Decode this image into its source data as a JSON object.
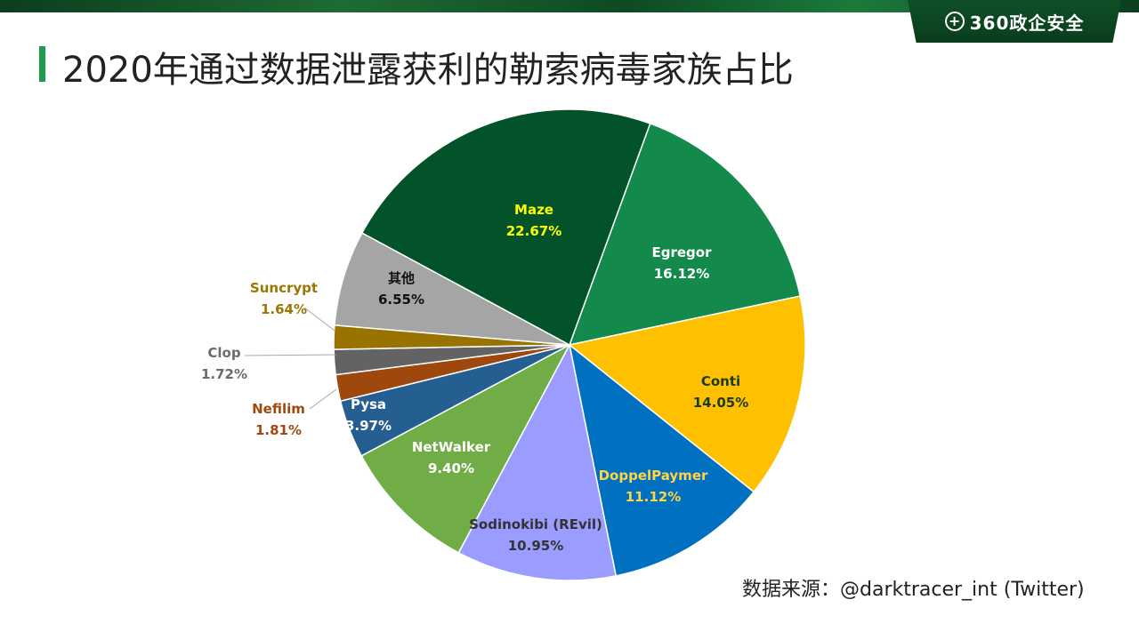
{
  "header": {
    "logo_glyph": "+",
    "logo_text": "360政企安全",
    "logo_icon": "360-logo-icon"
  },
  "title": "2020年通过数据泄露获利的勒索病毒家族占比",
  "source_note": "数据来源：@darktracer_int (Twitter)",
  "chart_data": {
    "type": "pie",
    "title": "2020年通过数据泄露获利的勒索病毒家族占比",
    "unit": "%",
    "start_angle_deg": 20,
    "direction": "clockwise",
    "slices": [
      {
        "label": "Egregor",
        "value": 16.12,
        "color": "#138a4b",
        "label_color": "#ffffff",
        "pct_text": "16.12%"
      },
      {
        "label": "Conti",
        "value": 14.05,
        "color": "#ffc000",
        "label_color": "#1a3c1a",
        "pct_text": "14.05%"
      },
      {
        "label": "DoppelPaymer",
        "value": 11.12,
        "color": "#0070c0",
        "label_color": "#ffd447",
        "pct_text": "11.12%"
      },
      {
        "label": "Sodinokibi (REvil)",
        "value": 10.95,
        "color": "#9a9cff",
        "label_color": "#333333",
        "pct_text": "10.95%"
      },
      {
        "label": "NetWalker",
        "value": 9.4,
        "color": "#70ad47",
        "label_color": "#ffffff",
        "pct_text": "9.40%"
      },
      {
        "label": "Pysa",
        "value": 3.97,
        "color": "#255e91",
        "label_color": "#ffffff",
        "pct_text": "3.97%"
      },
      {
        "label": "Nefilim",
        "value": 1.81,
        "color": "#9e480e",
        "label_color": "#a0490f",
        "pct_text": "1.81%"
      },
      {
        "label": "Clop",
        "value": 1.72,
        "color": "#636363",
        "label_color": "#6b6b6b",
        "pct_text": "1.72%"
      },
      {
        "label": "Suncrypt",
        "value": 1.64,
        "color": "#997300",
        "label_color": "#9c7600",
        "pct_text": "1.64%"
      },
      {
        "label": "其他",
        "value": 6.55,
        "color": "#a5a5a5",
        "label_color": "#111111",
        "pct_text": "6.55%"
      },
      {
        "label": "Maze",
        "value": 22.67,
        "color": "#03532a",
        "label_color": "#ffff00",
        "pct_text": "22.67%"
      }
    ]
  }
}
